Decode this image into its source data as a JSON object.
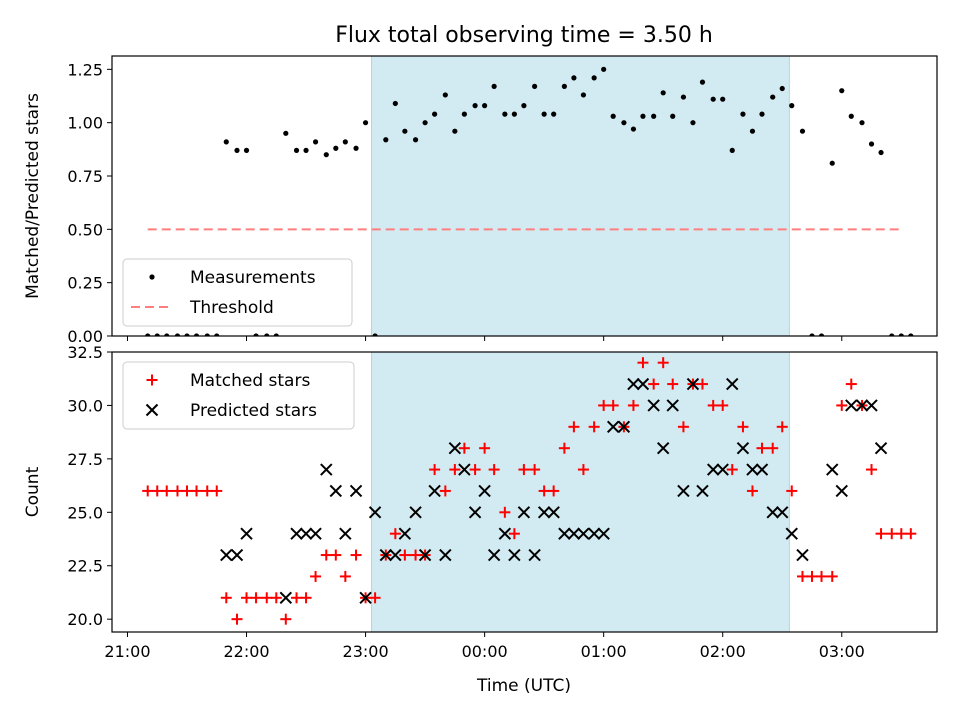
{
  "title": "Flux total observing time = 3.50 h",
  "colors": {
    "shade": "#add8e6",
    "matched": "#ff0000",
    "predicted": "#000000",
    "threshold": "#ff7f7f"
  },
  "x_axis": {
    "label": "Time (UTC)",
    "ticks": [
      {
        "v": 21.0,
        "label": "21:00"
      },
      {
        "v": 22.0,
        "label": "22:00"
      },
      {
        "v": 23.0,
        "label": "23:00"
      },
      {
        "v": 24.0,
        "label": "00:00"
      },
      {
        "v": 25.0,
        "label": "01:00"
      },
      {
        "v": 26.0,
        "label": "02:00"
      },
      {
        "v": 27.0,
        "label": "03:00"
      }
    ]
  },
  "chart_data": [
    {
      "type": "scatter",
      "ylabel": "Matched/Predicted stars",
      "xlim": [
        20.87,
        27.8
      ],
      "ylim": [
        0,
        1.3125
      ],
      "yticks": [
        "0.00",
        "0.25",
        "0.50",
        "0.75",
        "1.00",
        "1.25"
      ],
      "shaded_region": [
        23.05,
        26.56
      ],
      "legend": {
        "position": "lower-left",
        "entries": [
          "Measurements",
          "Threshold"
        ]
      },
      "threshold": {
        "name": "Threshold",
        "y": 0.5,
        "x": [
          21.17,
          27.5
        ]
      },
      "series": [
        {
          "name": "Measurements",
          "points": [
            [
              21.17,
              0
            ],
            [
              21.25,
              0
            ],
            [
              21.33,
              0
            ],
            [
              21.42,
              0
            ],
            [
              21.5,
              0
            ],
            [
              21.58,
              0
            ],
            [
              21.67,
              0
            ],
            [
              21.75,
              0
            ],
            [
              21.83,
              0.91
            ],
            [
              21.92,
              0.87
            ],
            [
              22.0,
              0.87
            ],
            [
              22.08,
              0
            ],
            [
              22.17,
              0
            ],
            [
              22.25,
              0
            ],
            [
              22.33,
              0.95
            ],
            [
              22.42,
              0.87
            ],
            [
              22.5,
              0.87
            ],
            [
              22.58,
              0.91
            ],
            [
              22.67,
              0.85
            ],
            [
              22.75,
              0.88
            ],
            [
              22.83,
              0.91
            ],
            [
              22.92,
              0.88
            ],
            [
              23.0,
              1.0
            ],
            [
              23.08,
              0
            ],
            [
              23.17,
              0.92
            ],
            [
              23.25,
              1.09
            ],
            [
              23.33,
              0.96
            ],
            [
              23.42,
              0.92
            ],
            [
              23.5,
              1.0
            ],
            [
              23.58,
              1.04
            ],
            [
              23.67,
              1.13
            ],
            [
              23.75,
              0.96
            ],
            [
              23.83,
              1.04
            ],
            [
              23.92,
              1.08
            ],
            [
              24.0,
              1.08
            ],
            [
              24.08,
              1.17
            ],
            [
              24.17,
              1.04
            ],
            [
              24.25,
              1.04
            ],
            [
              24.33,
              1.08
            ],
            [
              24.42,
              1.17
            ],
            [
              24.5,
              1.04
            ],
            [
              24.58,
              1.04
            ],
            [
              24.67,
              1.17
            ],
            [
              24.75,
              1.21
            ],
            [
              24.83,
              1.13
            ],
            [
              24.92,
              1.21
            ],
            [
              25.0,
              1.25
            ],
            [
              25.08,
              1.03
            ],
            [
              25.17,
              1.0
            ],
            [
              25.25,
              0.97
            ],
            [
              25.33,
              1.03
            ],
            [
              25.42,
              1.03
            ],
            [
              25.5,
              1.14
            ],
            [
              25.58,
              1.03
            ],
            [
              25.67,
              1.12
            ],
            [
              25.75,
              1.0
            ],
            [
              25.83,
              1.19
            ],
            [
              25.92,
              1.11
            ],
            [
              26.0,
              1.11
            ],
            [
              26.08,
              0.87
            ],
            [
              26.17,
              1.04
            ],
            [
              26.25,
              0.96
            ],
            [
              26.33,
              1.04
            ],
            [
              26.42,
              1.12
            ],
            [
              26.5,
              1.16
            ],
            [
              26.58,
              1.08
            ],
            [
              26.67,
              0.96
            ],
            [
              26.75,
              0
            ],
            [
              26.83,
              0
            ],
            [
              26.92,
              0.81
            ],
            [
              27.0,
              1.15
            ],
            [
              27.08,
              1.03
            ],
            [
              27.17,
              1.0
            ],
            [
              27.25,
              0.9
            ],
            [
              27.33,
              0.86
            ],
            [
              27.42,
              0
            ],
            [
              27.5,
              0
            ],
            [
              27.58,
              0
            ]
          ]
        }
      ]
    },
    {
      "type": "scatter",
      "ylabel": "Count",
      "xlabel": "Time (UTC)",
      "xlim": [
        20.87,
        27.8
      ],
      "ylim": [
        19.4,
        32.5
      ],
      "yticks": [
        "20.0",
        "22.5",
        "25.0",
        "27.5",
        "30.0",
        "32.5"
      ],
      "shaded_region": [
        23.05,
        26.56
      ],
      "legend": {
        "position": "top-left",
        "entries": [
          "Matched stars",
          "Predicted stars"
        ]
      },
      "series": [
        {
          "name": "Matched stars",
          "marker": "plus",
          "points": [
            [
              21.17,
              26
            ],
            [
              21.25,
              26
            ],
            [
              21.33,
              26
            ],
            [
              21.42,
              26
            ],
            [
              21.5,
              26
            ],
            [
              21.58,
              26
            ],
            [
              21.67,
              26
            ],
            [
              21.75,
              26
            ],
            [
              21.83,
              21
            ],
            [
              21.92,
              20
            ],
            [
              22.0,
              21
            ],
            [
              22.08,
              21
            ],
            [
              22.17,
              21
            ],
            [
              22.25,
              21
            ],
            [
              22.33,
              20
            ],
            [
              22.42,
              21
            ],
            [
              22.5,
              21
            ],
            [
              22.58,
              22
            ],
            [
              22.67,
              23
            ],
            [
              22.75,
              23
            ],
            [
              22.83,
              22
            ],
            [
              22.92,
              23
            ],
            [
              23.0,
              21
            ],
            [
              23.08,
              21
            ],
            [
              23.17,
              23
            ],
            [
              23.25,
              24
            ],
            [
              23.33,
              23
            ],
            [
              23.42,
              23
            ],
            [
              23.5,
              23
            ],
            [
              23.58,
              27
            ],
            [
              23.67,
              26
            ],
            [
              23.75,
              27
            ],
            [
              23.83,
              28
            ],
            [
              23.92,
              27
            ],
            [
              24.0,
              28
            ],
            [
              24.08,
              27
            ],
            [
              24.17,
              25
            ],
            [
              24.25,
              24
            ],
            [
              24.33,
              27
            ],
            [
              24.42,
              27
            ],
            [
              24.5,
              26
            ],
            [
              24.58,
              26
            ],
            [
              24.67,
              28
            ],
            [
              24.75,
              29
            ],
            [
              24.83,
              27
            ],
            [
              24.92,
              29
            ],
            [
              25.0,
              30
            ],
            [
              25.08,
              30
            ],
            [
              25.17,
              29
            ],
            [
              25.25,
              30
            ],
            [
              25.33,
              32
            ],
            [
              25.42,
              31
            ],
            [
              25.5,
              32
            ],
            [
              25.58,
              31
            ],
            [
              25.67,
              29
            ],
            [
              25.75,
              31
            ],
            [
              25.83,
              31
            ],
            [
              25.92,
              30
            ],
            [
              26.0,
              30
            ],
            [
              26.08,
              27
            ],
            [
              26.17,
              29
            ],
            [
              26.25,
              26
            ],
            [
              26.33,
              28
            ],
            [
              26.42,
              28
            ],
            [
              26.5,
              29
            ],
            [
              26.58,
              26
            ],
            [
              26.67,
              22
            ],
            [
              26.75,
              22
            ],
            [
              26.83,
              22
            ],
            [
              26.92,
              22
            ],
            [
              27.0,
              30
            ],
            [
              27.08,
              31
            ],
            [
              27.17,
              30
            ],
            [
              27.25,
              27
            ],
            [
              27.33,
              24
            ],
            [
              27.42,
              24
            ],
            [
              27.5,
              24
            ],
            [
              27.58,
              24
            ]
          ]
        },
        {
          "name": "Predicted stars",
          "marker": "x",
          "points": [
            [
              21.83,
              23
            ],
            [
              21.92,
              23
            ],
            [
              22.0,
              24
            ],
            [
              22.33,
              21
            ],
            [
              22.42,
              24
            ],
            [
              22.5,
              24
            ],
            [
              22.58,
              24
            ],
            [
              22.67,
              27
            ],
            [
              22.75,
              26
            ],
            [
              22.83,
              24
            ],
            [
              22.92,
              26
            ],
            [
              23.0,
              21
            ],
            [
              23.08,
              25
            ],
            [
              23.17,
              23
            ],
            [
              23.25,
              23
            ],
            [
              23.33,
              24
            ],
            [
              23.42,
              25
            ],
            [
              23.5,
              23
            ],
            [
              23.58,
              26
            ],
            [
              23.67,
              23
            ],
            [
              23.75,
              28
            ],
            [
              23.83,
              27
            ],
            [
              23.92,
              25
            ],
            [
              24.0,
              26
            ],
            [
              24.08,
              23
            ],
            [
              24.17,
              24
            ],
            [
              24.25,
              23
            ],
            [
              24.33,
              25
            ],
            [
              24.42,
              23
            ],
            [
              24.5,
              25
            ],
            [
              24.58,
              25
            ],
            [
              24.67,
              24
            ],
            [
              24.75,
              24
            ],
            [
              24.83,
              24
            ],
            [
              24.92,
              24
            ],
            [
              25.0,
              24
            ],
            [
              25.08,
              29
            ],
            [
              25.17,
              29
            ],
            [
              25.25,
              31
            ],
            [
              25.33,
              31
            ],
            [
              25.42,
              30
            ],
            [
              25.5,
              28
            ],
            [
              25.58,
              30
            ],
            [
              25.67,
              26
            ],
            [
              25.75,
              31
            ],
            [
              25.83,
              26
            ],
            [
              25.92,
              27
            ],
            [
              26.0,
              27
            ],
            [
              26.08,
              31
            ],
            [
              26.17,
              28
            ],
            [
              26.25,
              27
            ],
            [
              26.33,
              27
            ],
            [
              26.42,
              25
            ],
            [
              26.5,
              25
            ],
            [
              26.58,
              24
            ],
            [
              26.67,
              23
            ],
            [
              26.92,
              27
            ],
            [
              27.0,
              26
            ],
            [
              27.08,
              30
            ],
            [
              27.17,
              30
            ],
            [
              27.25,
              30
            ],
            [
              27.33,
              28
            ]
          ]
        }
      ]
    }
  ]
}
